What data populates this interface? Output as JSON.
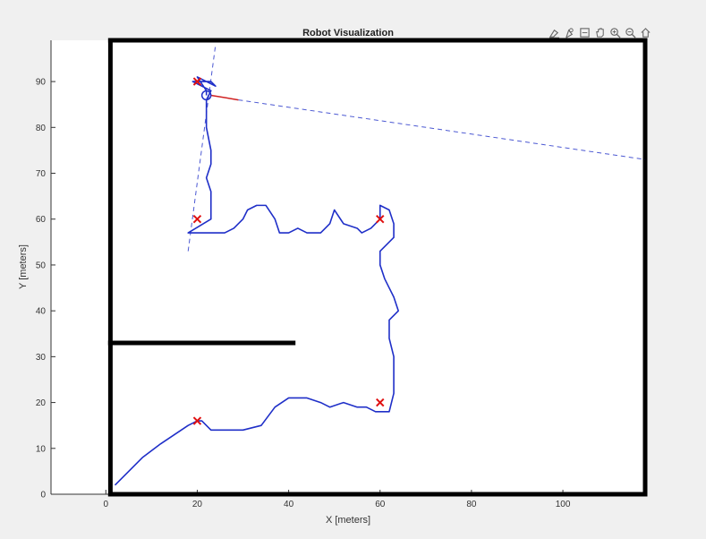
{
  "chart_data": {
    "type": "line",
    "title": "Robot Visualization",
    "xlabel": "X [meters]",
    "ylabel": "Y [meters]",
    "xlim": [
      -12,
      118
    ],
    "ylim": [
      0,
      99
    ],
    "xticks": [
      0,
      20,
      40,
      60,
      80,
      100
    ],
    "yticks": [
      0,
      10,
      20,
      30,
      40,
      50,
      60,
      70,
      80,
      90
    ],
    "grid": false,
    "legend": "none",
    "colors": {
      "path": "#1f2fc8",
      "target": "#e01010",
      "wall": "#000000",
      "heading": "#d02020"
    },
    "walls": [
      {
        "x": [
          1,
          118
        ],
        "y": [
          99,
          99
        ]
      },
      {
        "x": [
          118,
          118
        ],
        "y": [
          99,
          0
        ]
      },
      {
        "x": [
          118,
          1
        ],
        "y": [
          0,
          0
        ]
      },
      {
        "x": [
          1,
          1
        ],
        "y": [
          0,
          33
        ]
      },
      {
        "x": [
          1,
          41
        ],
        "y": [
          33,
          33
        ]
      },
      {
        "x": [
          1,
          1
        ],
        "y": [
          33,
          99
        ]
      }
    ],
    "targets": [
      {
        "x": 20,
        "y": 90
      },
      {
        "x": 20,
        "y": 60
      },
      {
        "x": 60,
        "y": 60
      },
      {
        "x": 60,
        "y": 20
      },
      {
        "x": 20,
        "y": 16
      }
    ],
    "path": {
      "x": [
        2,
        5,
        8,
        12,
        15,
        18,
        20,
        21,
        23,
        26,
        30,
        34,
        37,
        40,
        44,
        47,
        49,
        52,
        55,
        57,
        59,
        62,
        63,
        63,
        62,
        62,
        64,
        63,
        62,
        61,
        60,
        60,
        63,
        63,
        62,
        60,
        60,
        58,
        56,
        55,
        52,
        50,
        49,
        47,
        44,
        42,
        40,
        38,
        37,
        35,
        33,
        31,
        30,
        29,
        28,
        26,
        25,
        24,
        23,
        22,
        20,
        18,
        23,
        23,
        22,
        23,
        23,
        22,
        22,
        23,
        21,
        19,
        23,
        24,
        20,
        22,
        22
      ],
      "y": [
        2,
        5,
        8,
        11,
        13,
        15,
        16,
        16,
        14,
        14,
        14,
        15,
        19,
        21,
        21,
        20,
        19,
        20,
        19,
        19,
        18,
        18,
        22,
        30,
        34,
        38,
        40,
        43,
        45,
        47,
        50,
        53,
        56,
        59,
        62,
        63,
        60,
        58,
        57,
        58,
        59,
        62,
        59,
        57,
        57,
        58,
        57,
        57,
        60,
        63,
        63,
        62,
        60,
        59,
        58,
        57,
        57,
        57,
        57,
        57,
        57,
        57,
        60,
        66,
        69,
        72,
        75,
        80,
        86,
        88,
        89,
        90,
        90,
        89,
        91,
        88,
        87
      ]
    },
    "heading_line": {
      "x": [
        23,
        29
      ],
      "y": [
        87,
        86
      ]
    },
    "dashed_lines": [
      {
        "x": [
          29,
          118
        ],
        "y": [
          86,
          73
        ]
      },
      {
        "x": [
          18,
          24
        ],
        "y": [
          53,
          98
        ]
      }
    ]
  },
  "toolbar": [
    {
      "name": "brush-icon"
    },
    {
      "name": "datatip-icon"
    },
    {
      "name": "export-icon"
    },
    {
      "name": "pan-hand-icon"
    },
    {
      "name": "zoom-in-icon"
    },
    {
      "name": "zoom-out-icon"
    },
    {
      "name": "home-icon"
    }
  ]
}
